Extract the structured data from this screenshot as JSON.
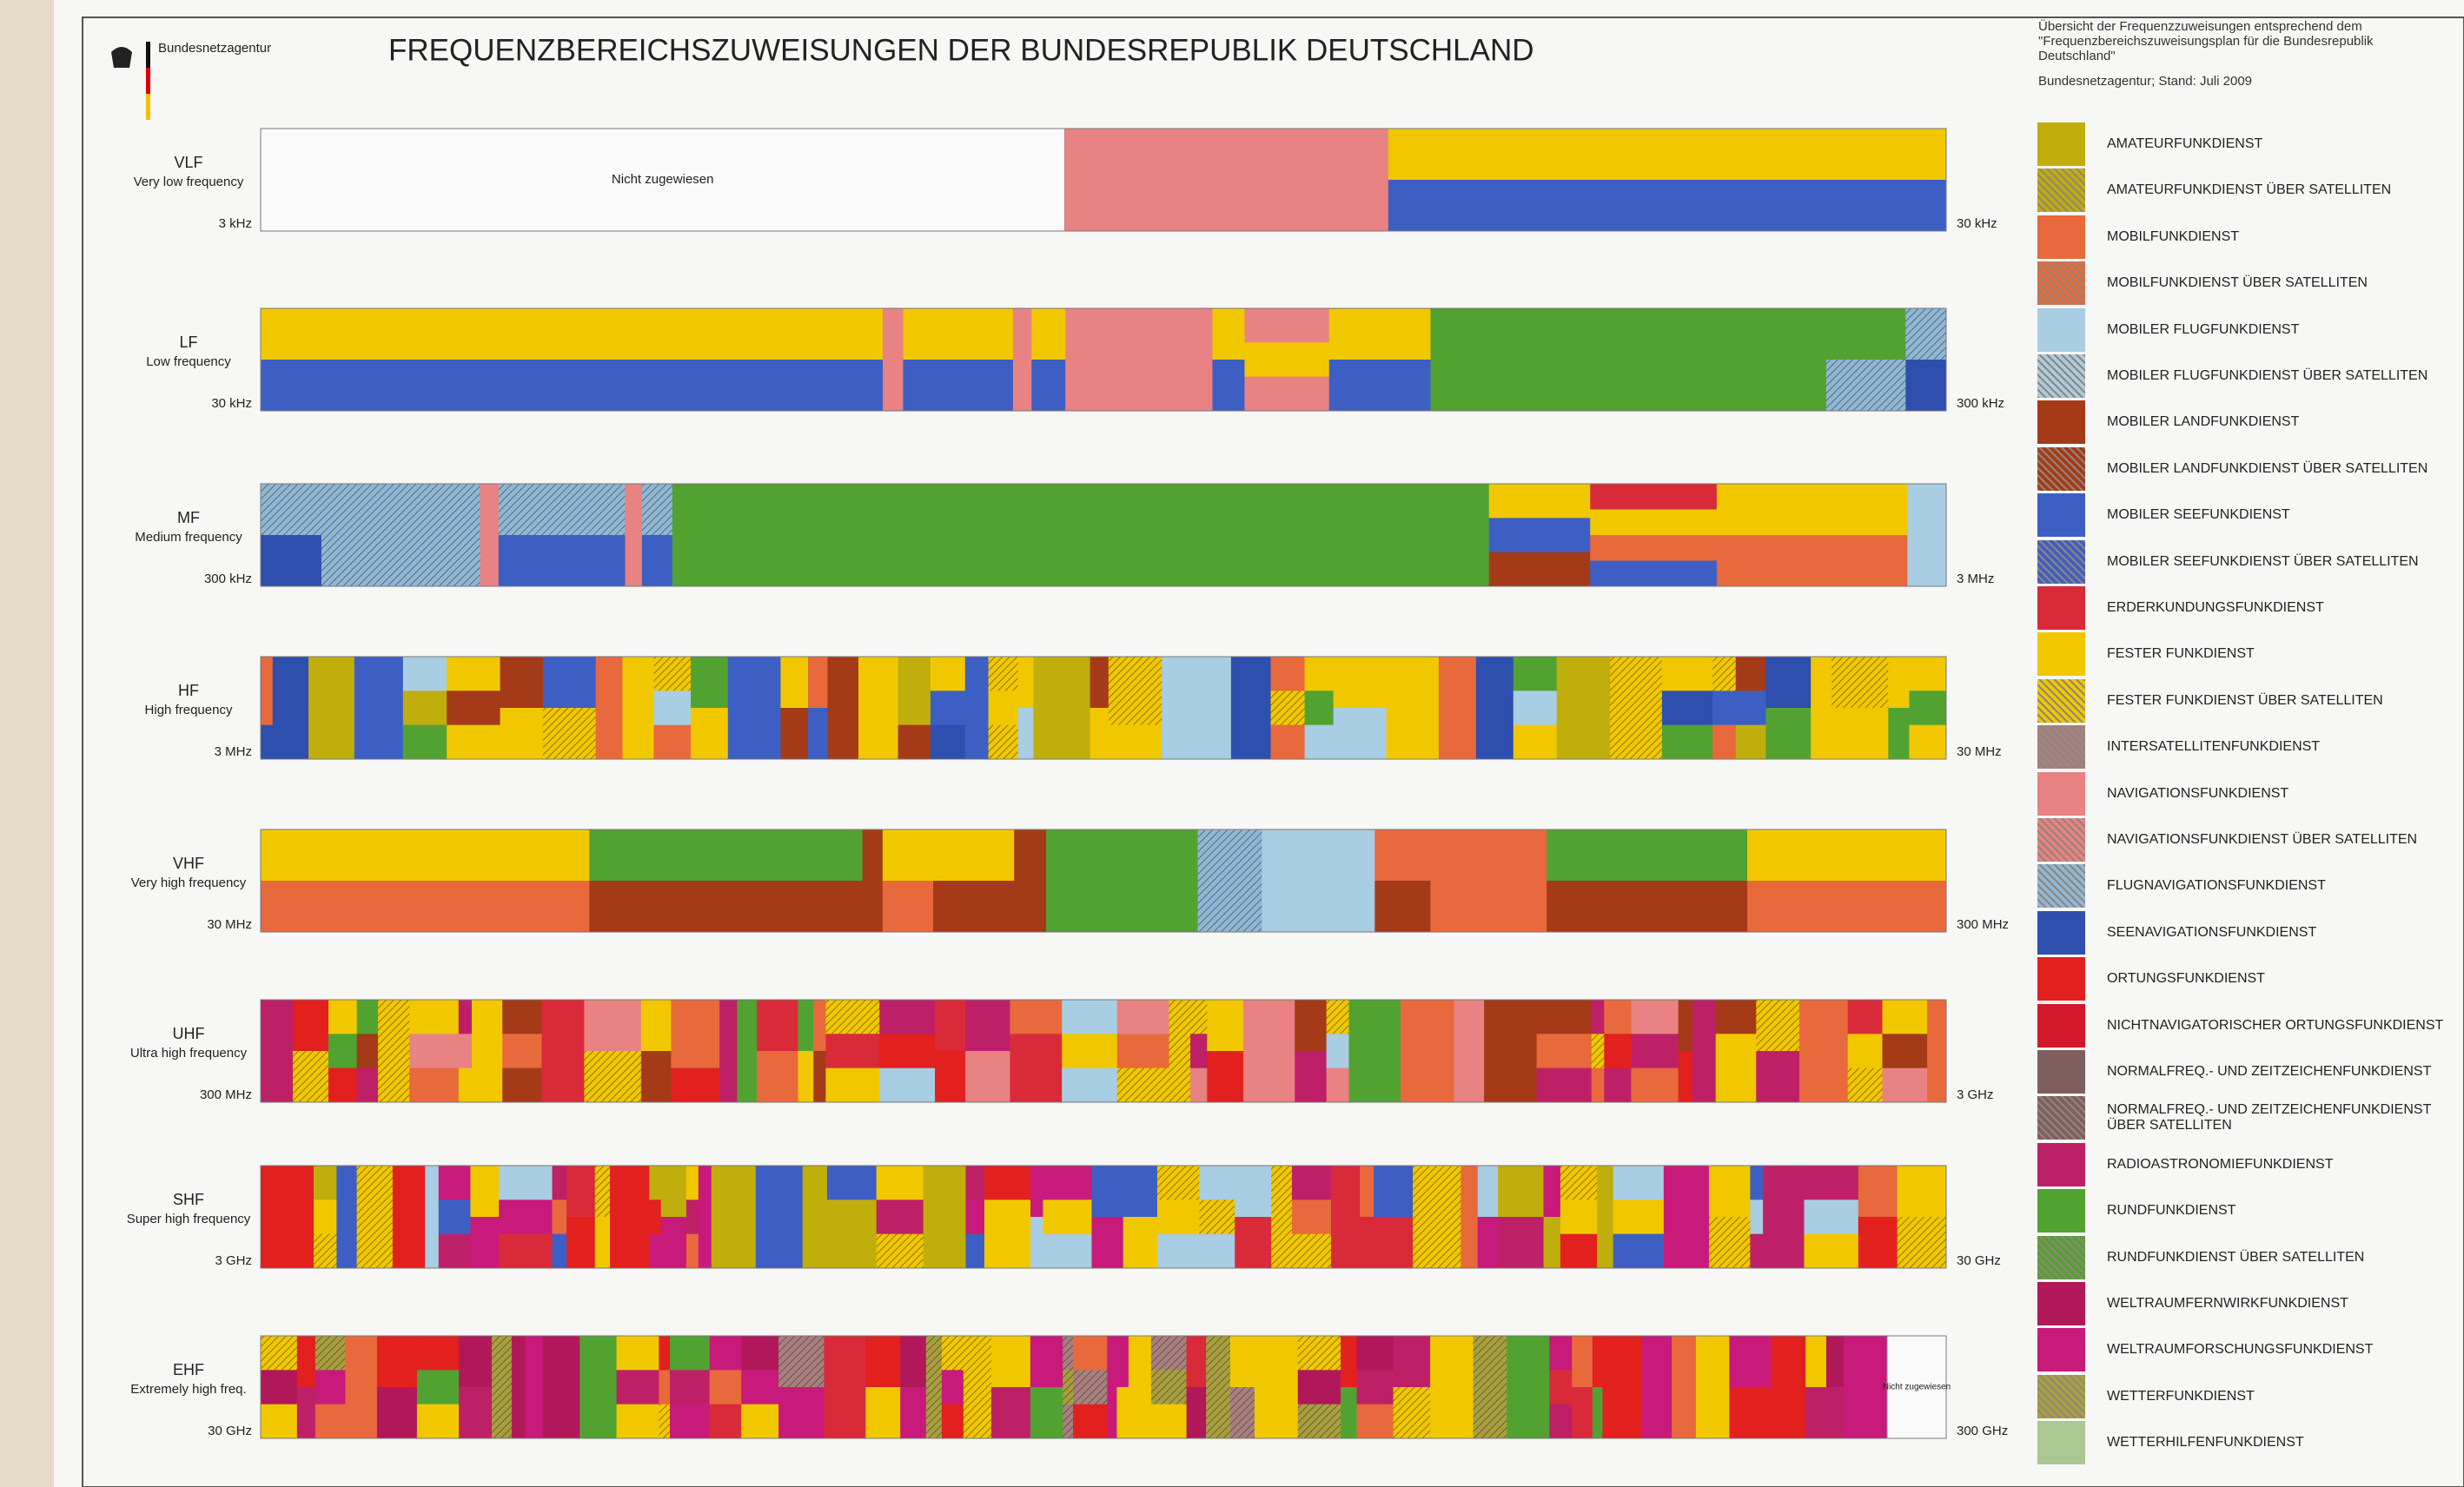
{
  "header": {
    "agency": "Bundesnetzagentur",
    "title": "FREQUENZBEREICHSZUWEISUNGEN DER BUNDESREPUBLIK DEUTSCHLAND"
  },
  "info": {
    "description": "Übersicht der Frequenzzuweisungen entsprechend dem \"Frequenzbereichszuweisungsplan für die Bundesrepublik Deutschland\"",
    "source": "Bundesnetzagentur; Stand: Juli 2009"
  },
  "legend": [
    {
      "label": "AMATEURFUNKDIENST",
      "color": "#bfae0c",
      "hatched": false
    },
    {
      "label": "AMATEURFUNKDIENST ÜBER SATELLITEN",
      "color": "#bfae0c",
      "hatched": true
    },
    {
      "label": "MOBILFUNKDIENST",
      "color": "#e8693c",
      "hatched": false
    },
    {
      "label": "MOBILFUNKDIENST ÜBER SATELLITEN",
      "color": "#e8693c",
      "hatched": true
    },
    {
      "label": "MOBILER FLUGFUNKDIENST",
      "color": "#a9cde2",
      "hatched": false
    },
    {
      "label": "MOBILER FLUGFUNKDIENST ÜBER SATELLITEN",
      "color": "#a9cde2",
      "hatched": true
    },
    {
      "label": "MOBILER LANDFUNKDIENST",
      "color": "#a53a18",
      "hatched": false
    },
    {
      "label": "MOBILER LANDFUNKDIENST ÜBER SATELLITEN",
      "color": "#a53a18",
      "hatched": true
    },
    {
      "label": "MOBILER SEEFUNKDIENST",
      "color": "#3d5fc4",
      "hatched": false
    },
    {
      "label": "MOBILER SEEFUNKDIENST ÜBER SATELLITEN",
      "color": "#3d5fc4",
      "hatched": true
    },
    {
      "label": "ERDERKUNDUNGSFUNKDIENST",
      "color": "#d92a3a",
      "hatched": false
    },
    {
      "label": "FESTER FUNKDIENST",
      "color": "#f1c800",
      "hatched": false
    },
    {
      "label": "FESTER FUNKDIENST ÜBER SATELLITEN",
      "color": "#f1c800",
      "hatched": true
    },
    {
      "label": "INTERSATELLITENFUNKDIENST",
      "color": "#a88080",
      "hatched": true
    },
    {
      "label": "NAVIGATIONSFUNKDIENST",
      "color": "#e98282",
      "hatched": false
    },
    {
      "label": "NAVIGATIONSFUNKDIENST ÜBER SATELLITEN",
      "color": "#e98282",
      "hatched": true
    },
    {
      "label": "FLUGNAVIGATIONSFUNKDIENST",
      "color": "#8fb8d8",
      "hatched": true
    },
    {
      "label": "SEENAVIGATIONSFUNKDIENST",
      "color": "#2f4fae",
      "hatched": false
    },
    {
      "label": "ORTUNGSFUNKDIENST",
      "color": "#e2201e",
      "hatched": false
    },
    {
      "label": "NICHTNAVIGATORISCHER ORTUNGSFUNKDIENST",
      "color": "#d3182a",
      "hatched": false
    },
    {
      "label": "NORMALFREQ.- UND ZEITZEICHENFUNKDIENST",
      "color": "#7e5e5e",
      "hatched": false
    },
    {
      "label": "NORMALFREQ.- UND ZEITZEICHENFUNKDIENST ÜBER SATELLITEN",
      "color": "#7e5e5e",
      "hatched": true
    },
    {
      "label": "RADIOASTRONOMIEFUNKDIENST",
      "color": "#be2068",
      "hatched": false
    },
    {
      "label": "RUNDFUNKDIENST",
      "color": "#52a232",
      "hatched": false
    },
    {
      "label": "RUNDFUNKDIENST ÜBER SATELLITEN",
      "color": "#52a232",
      "hatched": true
    },
    {
      "label": "WELTRAUMFERNWIRKFUNKDIENST",
      "color": "#b0185a",
      "hatched": false
    },
    {
      "label": "WELTRAUMFORSCHUNGSFUNKDIENST",
      "color": "#c81a7a",
      "hatched": false
    },
    {
      "label": "WETTERFUNKDIENST",
      "color": "#a8a040",
      "hatched": true
    },
    {
      "label": "WETTERHILFENFUNKDIENST",
      "color": "#a9c892",
      "hatched": false
    }
  ],
  "bands": [
    {
      "name": "VLF",
      "description": "Very low frequency",
      "start": "3 kHz",
      "end": "30 kHz"
    },
    {
      "name": "LF",
      "description": "Low frequency",
      "start": "30 kHz",
      "end": "300 kHz"
    },
    {
      "name": "MF",
      "description": "Medium frequency",
      "start": "300 kHz",
      "end": "3 MHz"
    },
    {
      "name": "HF",
      "description": "High frequency",
      "start": "3 MHz",
      "end": "30 MHz"
    },
    {
      "name": "VHF",
      "description": "Very high frequency",
      "start": "30 MHz",
      "end": "300 MHz"
    },
    {
      "name": "UHF",
      "description": "Ultra high frequency",
      "start": "300 MHz",
      "end": "3 GHz"
    },
    {
      "name": "SHF",
      "description": "Super high frequency",
      "start": "3 GHz",
      "end": "30 GHz"
    },
    {
      "name": "EHF",
      "description": "Extremely high freq.",
      "start": "30 GHz",
      "end": "300 GHz"
    }
  ],
  "annotations": {
    "vlf_unassigned": "Nicht zugewiesen",
    "ehf_unassigned": "Nicht zugewiesen"
  }
}
